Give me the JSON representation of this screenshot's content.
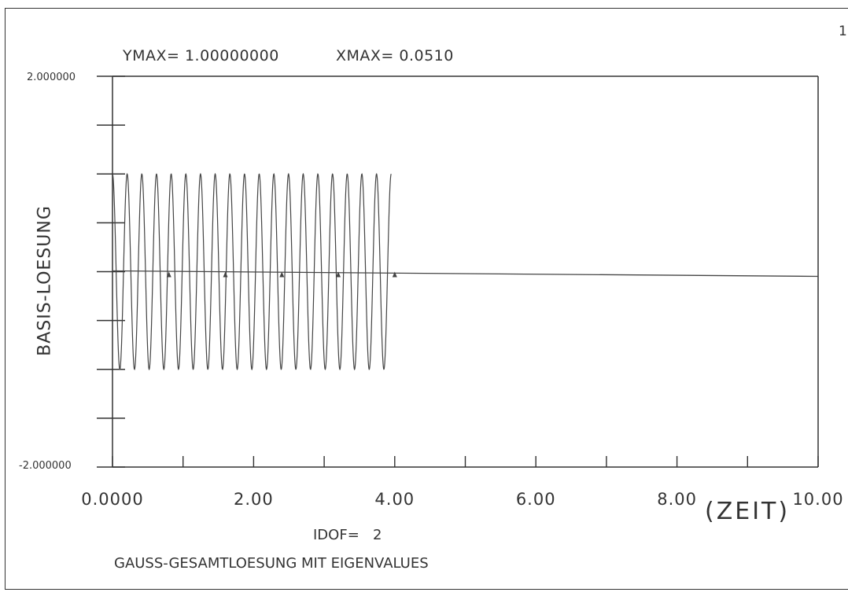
{
  "header": {
    "page_number": "1",
    "ymax_label": "YMAX= 1.00000000",
    "xmax_label": "XMAX= 0.0510"
  },
  "footer": {
    "idof_label": "IDOF=   2",
    "subtitle": "GAUSS-GESAMTLOESUNG MIT EIGENVALUES"
  },
  "colors": {
    "line": "#444444",
    "axis": "#333333"
  },
  "chart_data": {
    "type": "line",
    "title": "",
    "xlabel": "(ZEIT)",
    "ylabel": "BASIS-LOESUNG",
    "xlim": [
      0,
      10
    ],
    "ylim": [
      -2,
      2
    ],
    "y_tick_labels": [
      "2.000000",
      "-2.000000"
    ],
    "x_ticks": [
      0,
      2,
      4,
      6,
      8,
      10
    ],
    "x_tick_labels": [
      "0.0000",
      "2.00",
      "4.00",
      "6.00",
      "8.00",
      "10.00"
    ],
    "grid": false,
    "legend": "none",
    "series": [
      {
        "oscillation": {
          "x_start": 0,
          "x_end": 3.95,
          "cycles": 19,
          "amplitude": 1.0,
          "center": 0.0
        },
        "baseline": {
          "x_start": 0,
          "x_end": 10,
          "y": 0.0
        },
        "markers_x": [
          0.8,
          1.6,
          2.4,
          3.2,
          4.0
        ]
      }
    ]
  }
}
